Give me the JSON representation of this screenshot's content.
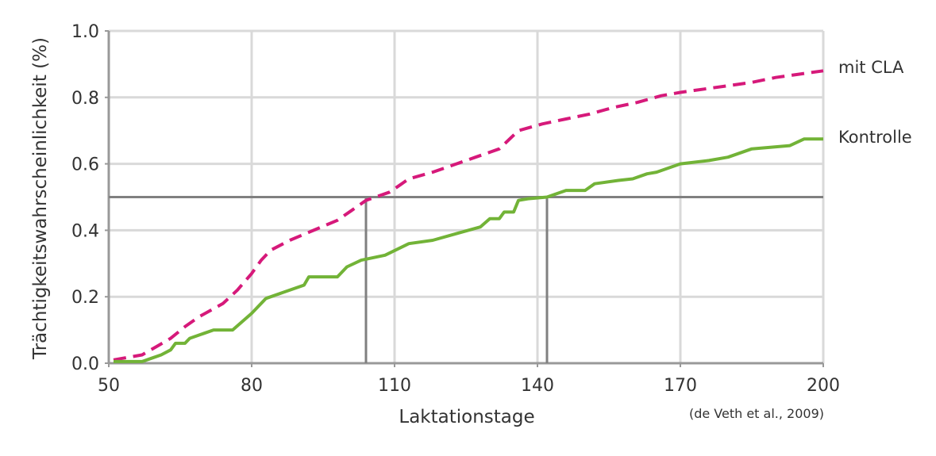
{
  "chart_data": {
    "type": "line",
    "xlabel": "Laktationstage",
    "ylabel": "Trächtigkeitswahrscheinlichkeit (%)",
    "source": "(de Veth et al., 2009)",
    "xlim": [
      50,
      200
    ],
    "ylim": [
      0,
      1
    ],
    "x_ticks": [
      50,
      80,
      110,
      140,
      170,
      200
    ],
    "y_ticks": [
      0.0,
      0.2,
      0.4,
      0.6,
      0.8,
      1.0
    ],
    "x_tick_labels": [
      "50",
      "80",
      "110",
      "140",
      "170",
      "200"
    ],
    "y_tick_labels": [
      "0.0",
      "0.2",
      "0.4",
      "0.6",
      "0.8",
      "1.0"
    ],
    "grid": true,
    "series": [
      {
        "name": "mit CLA",
        "color": "#d6197a",
        "style": "dashed",
        "points": [
          [
            51,
            0.01
          ],
          [
            53,
            0.015
          ],
          [
            57,
            0.025
          ],
          [
            60,
            0.05
          ],
          [
            63,
            0.075
          ],
          [
            66,
            0.11
          ],
          [
            69,
            0.14
          ],
          [
            74,
            0.18
          ],
          [
            77,
            0.22
          ],
          [
            80,
            0.27
          ],
          [
            82,
            0.31
          ],
          [
            84,
            0.34
          ],
          [
            88,
            0.37
          ],
          [
            93,
            0.4
          ],
          [
            98,
            0.43
          ],
          [
            101,
            0.46
          ],
          [
            104,
            0.49
          ],
          [
            109,
            0.515
          ],
          [
            113,
            0.555
          ],
          [
            118,
            0.575
          ],
          [
            123,
            0.6
          ],
          [
            127,
            0.62
          ],
          [
            132,
            0.645
          ],
          [
            136,
            0.7
          ],
          [
            141,
            0.72
          ],
          [
            146,
            0.735
          ],
          [
            151,
            0.75
          ],
          [
            156,
            0.77
          ],
          [
            161,
            0.785
          ],
          [
            166,
            0.805
          ],
          [
            170,
            0.815
          ],
          [
            175,
            0.825
          ],
          [
            180,
            0.835
          ],
          [
            185,
            0.845
          ],
          [
            190,
            0.86
          ],
          [
            195,
            0.87
          ],
          [
            200,
            0.88
          ]
        ]
      },
      {
        "name": "Kontrolle",
        "color": "#72b337",
        "style": "solid",
        "points": [
          [
            51,
            0.005
          ],
          [
            57,
            0.005
          ],
          [
            59,
            0.015
          ],
          [
            61,
            0.025
          ],
          [
            63,
            0.04
          ],
          [
            64,
            0.06
          ],
          [
            66,
            0.06
          ],
          [
            67,
            0.075
          ],
          [
            70,
            0.09
          ],
          [
            72,
            0.1
          ],
          [
            76,
            0.1
          ],
          [
            80,
            0.15
          ],
          [
            83,
            0.195
          ],
          [
            87,
            0.215
          ],
          [
            91,
            0.235
          ],
          [
            92,
            0.26
          ],
          [
            96,
            0.26
          ],
          [
            98,
            0.26
          ],
          [
            100,
            0.29
          ],
          [
            103,
            0.31
          ],
          [
            108,
            0.325
          ],
          [
            113,
            0.36
          ],
          [
            118,
            0.37
          ],
          [
            123,
            0.39
          ],
          [
            128,
            0.41
          ],
          [
            130,
            0.435
          ],
          [
            132,
            0.435
          ],
          [
            133,
            0.455
          ],
          [
            135,
            0.455
          ],
          [
            136,
            0.49
          ],
          [
            138,
            0.495
          ],
          [
            142,
            0.5
          ],
          [
            146,
            0.52
          ],
          [
            150,
            0.52
          ],
          [
            152,
            0.54
          ],
          [
            157,
            0.55
          ],
          [
            160,
            0.555
          ],
          [
            163,
            0.57
          ],
          [
            165,
            0.575
          ],
          [
            170,
            0.6
          ],
          [
            176,
            0.61
          ],
          [
            180,
            0.62
          ],
          [
            185,
            0.645
          ],
          [
            193,
            0.655
          ],
          [
            196,
            0.675
          ],
          [
            200,
            0.675
          ]
        ]
      }
    ],
    "reference_lines": {
      "y": 0.5,
      "x": [
        104,
        142
      ],
      "color": "#808080"
    },
    "gridline_color": "#d9d9d9",
    "axis_color": "#999999"
  }
}
